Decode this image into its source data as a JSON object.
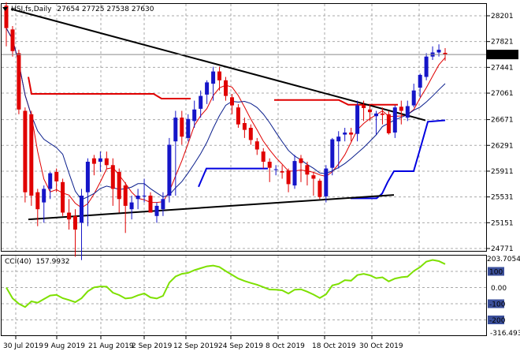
{
  "header": {
    "title": "HSI,fs,Daily",
    "ohlc": "27654 27725 27538 27630"
  },
  "indicator": {
    "name": "CCI(40)",
    "value": "157.9932",
    "panel_top_label": "203.7054",
    "panel_bottom_label": "-316.4930"
  },
  "price_axis": {
    "labels": [
      "28201",
      "27821",
      "27441",
      "27061",
      "26671",
      "26291",
      "25911",
      "25531",
      "25151",
      "24771"
    ],
    "current_price_label": "27630",
    "current_price": 27630
  },
  "cci_axis": {
    "labels": [
      "100",
      "0.00",
      "-100",
      "-200"
    ]
  },
  "date_axis": {
    "labels": [
      "30 Jul 2019",
      "9 Aug 2019",
      "21 Aug 2019",
      "2 Sep 2019",
      "12 Sep 2019",
      "24 Sep 2019",
      "8 Oct 2019",
      "18 Oct 2019",
      "30 Oct 2019"
    ]
  },
  "colors": {
    "bull": "#1515c8",
    "bear": "#e00000",
    "ma_fast": "#e00000",
    "ma_slow": "#0a1e8c",
    "step_red": "#e00000",
    "step_blue": "#0000e0",
    "trendline": "#000000",
    "cci": "#7de000",
    "grid": "#a9a9a9"
  },
  "chart_data": {
    "type": "candlestick",
    "title": "HSI,fs,Daily",
    "x": [
      "2019-07-30",
      "2019-07-31",
      "2019-08-01",
      "2019-08-02",
      "2019-08-05",
      "2019-08-06",
      "2019-08-07",
      "2019-08-08",
      "2019-08-09",
      "2019-08-12",
      "2019-08-13",
      "2019-08-14",
      "2019-08-15",
      "2019-08-16",
      "2019-08-19",
      "2019-08-20",
      "2019-08-21",
      "2019-08-22",
      "2019-08-23",
      "2019-08-26",
      "2019-08-27",
      "2019-08-28",
      "2019-08-29",
      "2019-08-30",
      "2019-09-02",
      "2019-09-03",
      "2019-09-04",
      "2019-09-05",
      "2019-09-06",
      "2019-09-09",
      "2019-09-10",
      "2019-09-11",
      "2019-09-12",
      "2019-09-13",
      "2019-09-16",
      "2019-09-17",
      "2019-09-18",
      "2019-09-19",
      "2019-09-20",
      "2019-09-23",
      "2019-09-24",
      "2019-09-25",
      "2019-09-26",
      "2019-09-27",
      "2019-09-30",
      "2019-10-02",
      "2019-10-03",
      "2019-10-04",
      "2019-10-07",
      "2019-10-08",
      "2019-10-09",
      "2019-10-10",
      "2019-10-11",
      "2019-10-14",
      "2019-10-15",
      "2019-10-16",
      "2019-10-17",
      "2019-10-18",
      "2019-10-21",
      "2019-10-22",
      "2019-10-23",
      "2019-10-24",
      "2019-10-25",
      "2019-10-28",
      "2019-10-29",
      "2019-10-30",
      "2019-10-31",
      "2019-11-01",
      "2019-11-04",
      "2019-11-05",
      "2019-11-06"
    ],
    "open": [
      28350,
      28000,
      27650,
      26800,
      26750,
      25600,
      25450,
      25650,
      25900,
      25750,
      25300,
      25250,
      25150,
      25600,
      26100,
      26050,
      26100,
      26000,
      25900,
      25700,
      25350,
      25500,
      25550,
      25550,
      25250,
      25350,
      25550,
      26350,
      26700,
      26400,
      26650,
      26830,
      27040,
      27200,
      27380,
      27250,
      27000,
      26850,
      26620,
      26550,
      26350,
      26200,
      26050,
      25940,
      25910,
      25920,
      25700,
      26100,
      26000,
      25850,
      25770,
      25540,
      25960,
      26350,
      26450,
      26480,
      26460,
      26880,
      26820,
      26720,
      26760,
      26750,
      26480,
      26860,
      26700,
      26880,
      27140,
      27300,
      27600,
      27660,
      27654
    ],
    "high": [
      28400,
      28050,
      27700,
      26850,
      26800,
      25650,
      25700,
      25900,
      25950,
      25800,
      25500,
      25350,
      25650,
      26100,
      26150,
      26200,
      26200,
      26100,
      25950,
      25750,
      25550,
      25650,
      25800,
      25600,
      25450,
      25600,
      26400,
      26800,
      26800,
      26750,
      26950,
      27100,
      27250,
      27450,
      27450,
      27300,
      27050,
      26900,
      26700,
      26600,
      26400,
      26250,
      26100,
      26000,
      26000,
      25950,
      26150,
      26150,
      26050,
      25900,
      25800,
      26000,
      26400,
      26500,
      26550,
      26550,
      26950,
      26950,
      26900,
      26800,
      26850,
      26800,
      26880,
      26950,
      26950,
      27200,
      27350,
      27650,
      27750,
      27780,
      27725
    ],
    "low": [
      27750,
      27600,
      26750,
      25450,
      25400,
      25100,
      25150,
      25500,
      25600,
      25250,
      25050,
      24650,
      24600,
      25100,
      25850,
      25900,
      25950,
      25400,
      25300,
      25000,
      25200,
      25350,
      25450,
      25300,
      25150,
      25250,
      25450,
      25550,
      26300,
      26350,
      26550,
      26700,
      26900,
      26950,
      27100,
      26950,
      26750,
      26550,
      26400,
      26300,
      26150,
      25950,
      25750,
      25850,
      25800,
      25600,
      25650,
      25750,
      25700,
      25550,
      25500,
      25450,
      25850,
      25950,
      26350,
      26350,
      26350,
      26650,
      26650,
      26450,
      26600,
      26450,
      26400,
      26600,
      26650,
      26850,
      27000,
      27250,
      27550,
      27600,
      27538
    ],
    "close": [
      28020,
      27680,
      26820,
      25600,
      25550,
      25350,
      25650,
      25880,
      25760,
      25300,
      25200,
      25050,
      25550,
      26050,
      26020,
      26100,
      26000,
      25650,
      25500,
      25400,
      25450,
      25550,
      25550,
      25300,
      25400,
      25500,
      26300,
      26700,
      26420,
      26680,
      26820,
      27020,
      27220,
      27380,
      27250,
      27020,
      26880,
      26600,
      26520,
      26370,
      26230,
      26050,
      25960,
      25940,
      25890,
      25720,
      26060,
      26030,
      25860,
      25800,
      25530,
      25950,
      26380,
      26420,
      26480,
      26450,
      26880,
      26840,
      26780,
      26760,
      26740,
      26470,
      26850,
      26800,
      26870,
      27100,
      27330,
      27600,
      27660,
      27700,
      27630
    ],
    "ylim": [
      24700,
      28400
    ]
  }
}
